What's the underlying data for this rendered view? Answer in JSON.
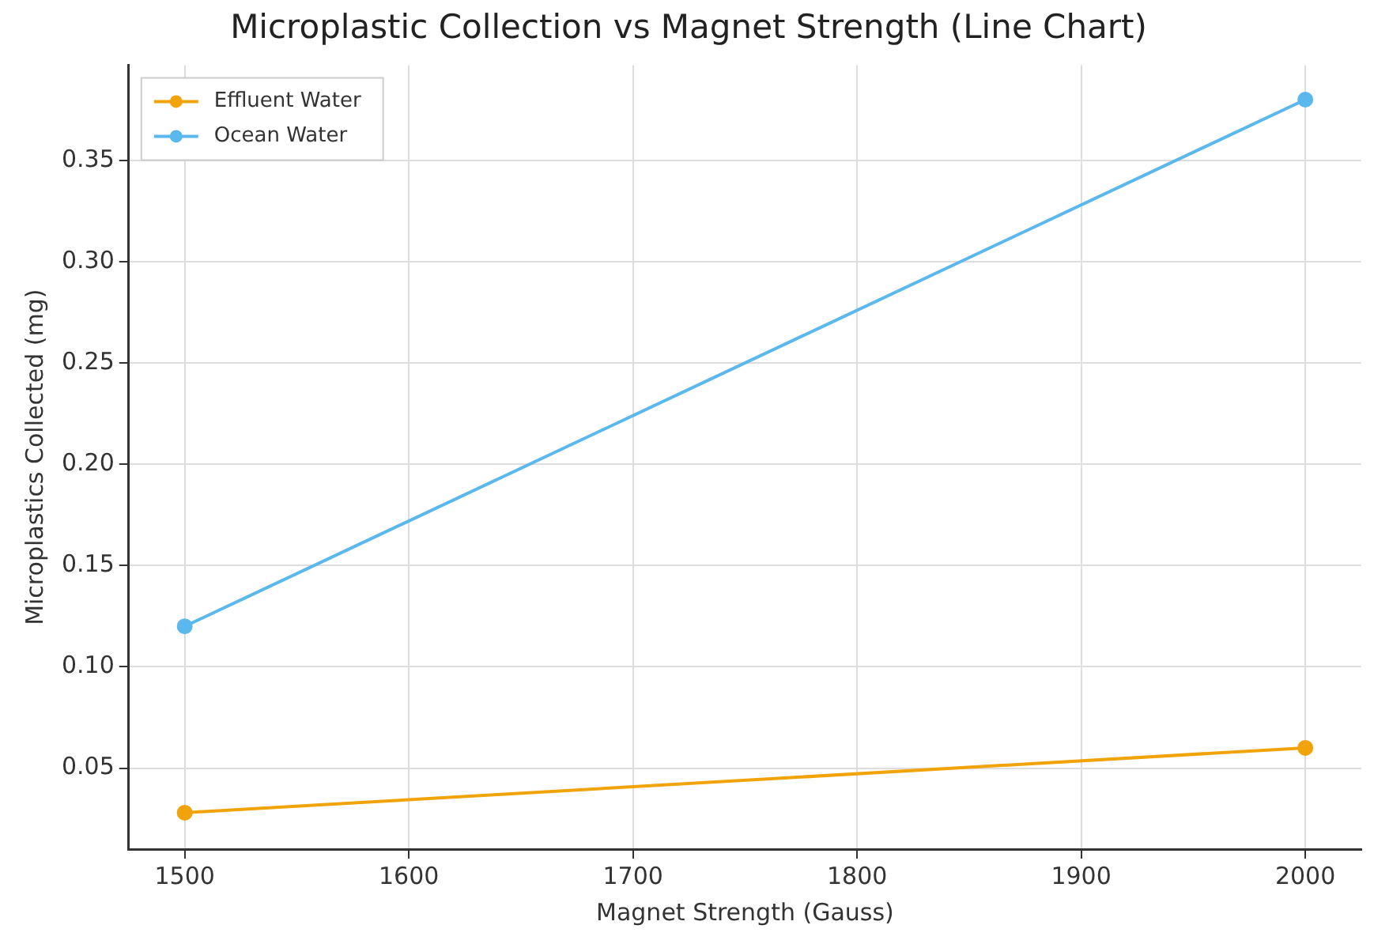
{
  "chart_data": {
    "type": "line",
    "title": "Microplastic Collection vs Magnet Strength (Line Chart)",
    "xlabel": "Magnet Strength (Gauss)",
    "ylabel": "Microplastics Collected (mg)",
    "x": [
      1500,
      2000
    ],
    "series": [
      {
        "name": "Effluent Water",
        "color": "#f0a30a",
        "values": [
          0.028,
          0.06
        ]
      },
      {
        "name": "Ocean Water",
        "color": "#5bb8ec",
        "values": [
          0.12,
          0.38
        ]
      }
    ],
    "xlim": [
      1475,
      2025
    ],
    "xticks": [
      1500,
      1600,
      1700,
      1800,
      1900,
      2000
    ],
    "ylim": [
      0.01,
      0.397
    ],
    "yticks": [
      {
        "value": 0.05,
        "label": "0.05"
      },
      {
        "value": 0.1,
        "label": "0.10"
      },
      {
        "value": 0.15,
        "label": "0.15"
      },
      {
        "value": 0.2,
        "label": "0.20"
      },
      {
        "value": 0.25,
        "label": "0.25"
      },
      {
        "value": 0.3,
        "label": "0.30"
      },
      {
        "value": 0.35,
        "label": "0.35"
      }
    ],
    "grid": true,
    "legend": "top left",
    "marker": "circle",
    "line_style": "solid"
  }
}
